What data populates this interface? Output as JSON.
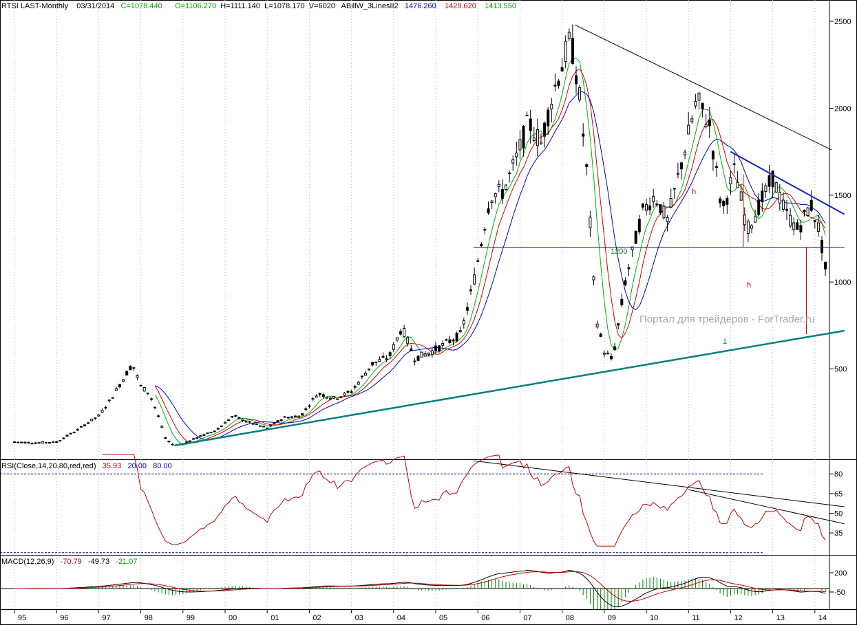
{
  "header": {
    "symbol": "RTSI LAST-Monthly",
    "date": "03/31/2014",
    "close": "C=1078.440",
    "open": "O=1106.270",
    "high": "H=1111.140",
    "low": "L=1078.170",
    "volume": "V=6020",
    "indicator": "ABillW_3LinesII2",
    "ind_blue": "1476.260",
    "ind_red": "1429.620",
    "ind_green": "1413.550"
  },
  "rsi_header": {
    "name": "RSI(Close,14,20,80,red,red)",
    "value": "35.93",
    "low": "20.00",
    "high": "80.00"
  },
  "macd_header": {
    "name": "MACD(12,26,9)",
    "v1": "-70.79",
    "v2": "-49.73",
    "v3": "-21.07"
  },
  "annotations": {
    "level_label": "1200",
    "h_top": "h",
    "h_bottom": "h",
    "line_label": "1",
    "watermark": "Портал для трейдеров - ForTrader.ru"
  },
  "colors": {
    "candles": "#000000",
    "ma_green": "#00b000",
    "ma_red": "#d00000",
    "ma_blue": "#0000c0",
    "support": "#008080",
    "resistance_blue": "#1020c0",
    "rsi": "#c00000",
    "macd_hist": "#008000",
    "annot_red": "#c00000",
    "annot_green": "#1a7a1a"
  },
  "chart_data": [
    {
      "type": "candlestick",
      "title": "RTSI LAST-Monthly",
      "x_ticks": [
        "95",
        "96",
        "97",
        "98",
        "99",
        "00",
        "01",
        "02",
        "03",
        "04",
        "05",
        "06",
        "07",
        "08",
        "09",
        "10",
        "11",
        "12",
        "13",
        "14"
      ],
      "y_ticks": [
        500,
        1000,
        1500,
        2000,
        2500
      ],
      "ylim": [
        0,
        2600
      ],
      "close_path": [
        {
          "x": 1995.0,
          "y": 80
        },
        {
          "x": 1995.5,
          "y": 75
        },
        {
          "x": 1996.0,
          "y": 80
        },
        {
          "x": 1996.5,
          "y": 150
        },
        {
          "x": 1996.8,
          "y": 200
        },
        {
          "x": 1997.0,
          "y": 230
        },
        {
          "x": 1997.3,
          "y": 330
        },
        {
          "x": 1997.6,
          "y": 450
        },
        {
          "x": 1997.8,
          "y": 530
        },
        {
          "x": 1998.0,
          "y": 400
        },
        {
          "x": 1998.2,
          "y": 360
        },
        {
          "x": 1998.4,
          "y": 240
        },
        {
          "x": 1998.6,
          "y": 90
        },
        {
          "x": 1998.8,
          "y": 60
        },
        {
          "x": 1999.0,
          "y": 70
        },
        {
          "x": 1999.4,
          "y": 110
        },
        {
          "x": 1999.8,
          "y": 150
        },
        {
          "x": 2000.2,
          "y": 230
        },
        {
          "x": 2000.6,
          "y": 190
        },
        {
          "x": 2001.0,
          "y": 160
        },
        {
          "x": 2001.4,
          "y": 220
        },
        {
          "x": 2001.8,
          "y": 230
        },
        {
          "x": 2002.2,
          "y": 360
        },
        {
          "x": 2002.6,
          "y": 330
        },
        {
          "x": 2003.0,
          "y": 370
        },
        {
          "x": 2003.5,
          "y": 530
        },
        {
          "x": 2003.9,
          "y": 570
        },
        {
          "x": 2004.2,
          "y": 740
        },
        {
          "x": 2004.5,
          "y": 560
        },
        {
          "x": 2004.9,
          "y": 600
        },
        {
          "x": 2005.2,
          "y": 640
        },
        {
          "x": 2005.6,
          "y": 700
        },
        {
          "x": 2005.9,
          "y": 1000
        },
        {
          "x": 2006.3,
          "y": 1500
        },
        {
          "x": 2006.6,
          "y": 1520
        },
        {
          "x": 2006.9,
          "y": 1700
        },
        {
          "x": 2007.2,
          "y": 1920
        },
        {
          "x": 2007.5,
          "y": 1800
        },
        {
          "x": 2007.8,
          "y": 2100
        },
        {
          "x": 2008.2,
          "y": 2400
        },
        {
          "x": 2008.4,
          "y": 2100
        },
        {
          "x": 2008.6,
          "y": 1600
        },
        {
          "x": 2008.8,
          "y": 800
        },
        {
          "x": 2009.0,
          "y": 600
        },
        {
          "x": 2009.2,
          "y": 550
        },
        {
          "x": 2009.5,
          "y": 1000
        },
        {
          "x": 2009.9,
          "y": 1400
        },
        {
          "x": 2010.2,
          "y": 1500
        },
        {
          "x": 2010.5,
          "y": 1350
        },
        {
          "x": 2010.9,
          "y": 1750
        },
        {
          "x": 2011.2,
          "y": 2050
        },
        {
          "x": 2011.5,
          "y": 1900
        },
        {
          "x": 2011.8,
          "y": 1400
        },
        {
          "x": 2012.1,
          "y": 1650
        },
        {
          "x": 2012.4,
          "y": 1300
        },
        {
          "x": 2012.7,
          "y": 1450
        },
        {
          "x": 2013.0,
          "y": 1600
        },
        {
          "x": 2013.3,
          "y": 1400
        },
        {
          "x": 2013.6,
          "y": 1300
        },
        {
          "x": 2013.9,
          "y": 1450
        },
        {
          "x": 2014.1,
          "y": 1300
        },
        {
          "x": 2014.25,
          "y": 1078
        }
      ],
      "trendlines": [
        {
          "name": "resistance",
          "x1": 2008.3,
          "y1": 2480,
          "x2": 2014.4,
          "y2": 1760
        },
        {
          "name": "resistance_short",
          "x1": 2012.0,
          "y1": 1750,
          "x2": 2014.7,
          "y2": 1390
        },
        {
          "name": "support",
          "x1": 1998.8,
          "y1": 60,
          "x2": 2014.7,
          "y2": 720
        },
        {
          "name": "level_1200",
          "x1": 2005.9,
          "y1": 1200,
          "x2": 2014.7,
          "y2": 1200
        }
      ]
    },
    {
      "type": "line",
      "title": "RSI(Close,14,20,80,red,red)",
      "y_ticks": [
        35,
        50,
        65,
        80
      ],
      "reference_levels": [
        20,
        80
      ],
      "last_value": 35.93
    },
    {
      "type": "line",
      "title": "MACD(12,26,9)",
      "y_ticks": [
        -50,
        200
      ],
      "values": [
        -70.79,
        -49.73,
        -21.07
      ]
    }
  ]
}
